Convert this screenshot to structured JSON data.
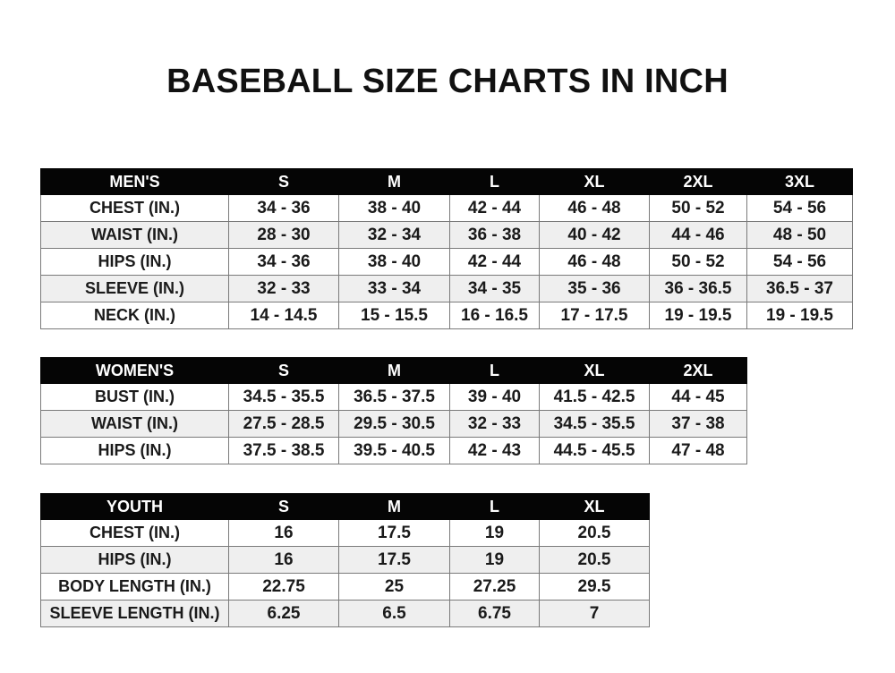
{
  "title": "BASEBALL SIZE CHARTS IN INCH",
  "tables": [
    {
      "id": "mens",
      "headers": [
        "MEN'S",
        "S",
        "M",
        "L",
        "XL",
        "2XL",
        "3XL"
      ],
      "rows": [
        [
          "CHEST (IN.)",
          "34 - 36",
          "38 - 40",
          "42 - 44",
          "46 - 48",
          "50 - 52",
          "54 - 56"
        ],
        [
          "WAIST (IN.)",
          "28 - 30",
          "32 - 34",
          "36 - 38",
          "40 - 42",
          "44 - 46",
          "48 - 50"
        ],
        [
          "HIPS (IN.)",
          "34 - 36",
          "38 - 40",
          "42 - 44",
          "46 - 48",
          "50 - 52",
          "54 - 56"
        ],
        [
          "SLEEVE (IN.)",
          "32 - 33",
          "33 - 34",
          "34 - 35",
          "35 - 36",
          "36 - 36.5",
          "36.5 - 37"
        ],
        [
          "NECK (IN.)",
          "14 - 14.5",
          "15 - 15.5",
          "16 - 16.5",
          "17 - 17.5",
          "19 - 19.5",
          "19 - 19.5"
        ]
      ]
    },
    {
      "id": "womens",
      "headers": [
        "WOMEN'S",
        "S",
        "M",
        "L",
        "XL",
        "2XL"
      ],
      "rows": [
        [
          "BUST (IN.)",
          "34.5 - 35.5",
          "36.5 - 37.5",
          "39 - 40",
          "41.5 - 42.5",
          "44 - 45"
        ],
        [
          "WAIST (IN.)",
          "27.5 - 28.5",
          "29.5 - 30.5",
          "32 - 33",
          "34.5 - 35.5",
          "37 - 38"
        ],
        [
          "HIPS (IN.)",
          "37.5 - 38.5",
          "39.5 - 40.5",
          "42 - 43",
          "44.5 - 45.5",
          "47 - 48"
        ]
      ]
    },
    {
      "id": "youth",
      "headers": [
        "YOUTH",
        "S",
        "M",
        "L",
        "XL"
      ],
      "rows": [
        [
          "CHEST (IN.)",
          "16",
          "17.5",
          "19",
          "20.5"
        ],
        [
          "HIPS (IN.)",
          "16",
          "17.5",
          "19",
          "20.5"
        ],
        [
          "BODY LENGTH (IN.)",
          "22.75",
          "25",
          "27.25",
          "29.5"
        ],
        [
          "SLEEVE LENGTH (IN.)",
          "6.25",
          "6.5",
          "6.75",
          "7"
        ]
      ]
    }
  ]
}
